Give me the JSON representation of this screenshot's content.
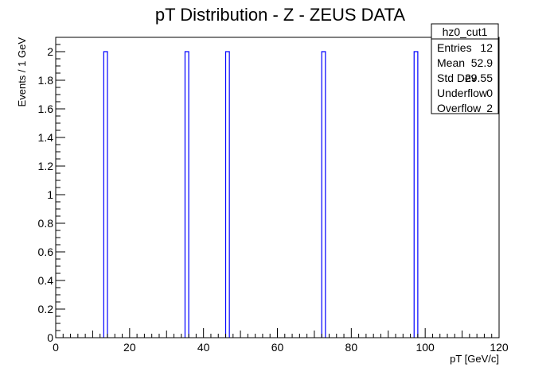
{
  "chart_data": {
    "type": "histogram",
    "title": "pT Distribution - Z - ZEUS DATA",
    "xlabel": "pT [GeV/c]",
    "ylabel": "Events / 1 GeV",
    "xlim": [
      0,
      120
    ],
    "ylim": [
      0,
      2.1
    ],
    "bin_width": 1,
    "x_ticks": [
      0,
      20,
      40,
      60,
      80,
      100,
      120
    ],
    "y_ticks": [
      0,
      0.2,
      0.4,
      0.6,
      0.8,
      1,
      1.2,
      1.4,
      1.6,
      1.8,
      2
    ],
    "x_tick_labels": [
      "0",
      "20",
      "40",
      "60",
      "80",
      "100",
      "120"
    ],
    "y_tick_labels": [
      "0",
      "0.2",
      "0.4",
      "0.6",
      "0.8",
      "1",
      "1.2",
      "1.4",
      "1.6",
      "1.8",
      "2"
    ],
    "series": [
      {
        "bins": [
          {
            "x_low": 13,
            "x_high": 14,
            "count": 2
          },
          {
            "x_low": 35,
            "x_high": 36,
            "count": 2
          },
          {
            "x_low": 46,
            "x_high": 47,
            "count": 2
          },
          {
            "x_low": 72,
            "x_high": 73,
            "count": 2
          },
          {
            "x_low": 97,
            "x_high": 98,
            "count": 2
          }
        ],
        "color": "#0000ff"
      }
    ],
    "stats_box": {
      "name": "hz0_cut1",
      "rows": [
        {
          "label": "Entries",
          "value": "12"
        },
        {
          "label": "Mean",
          "value": "52.9"
        },
        {
          "label": "Std Dev",
          "value": "29.55"
        },
        {
          "label": "Underflow",
          "value": "0"
        },
        {
          "label": "Overflow",
          "value": "2"
        }
      ]
    },
    "grid": false,
    "legend": "top-right"
  }
}
